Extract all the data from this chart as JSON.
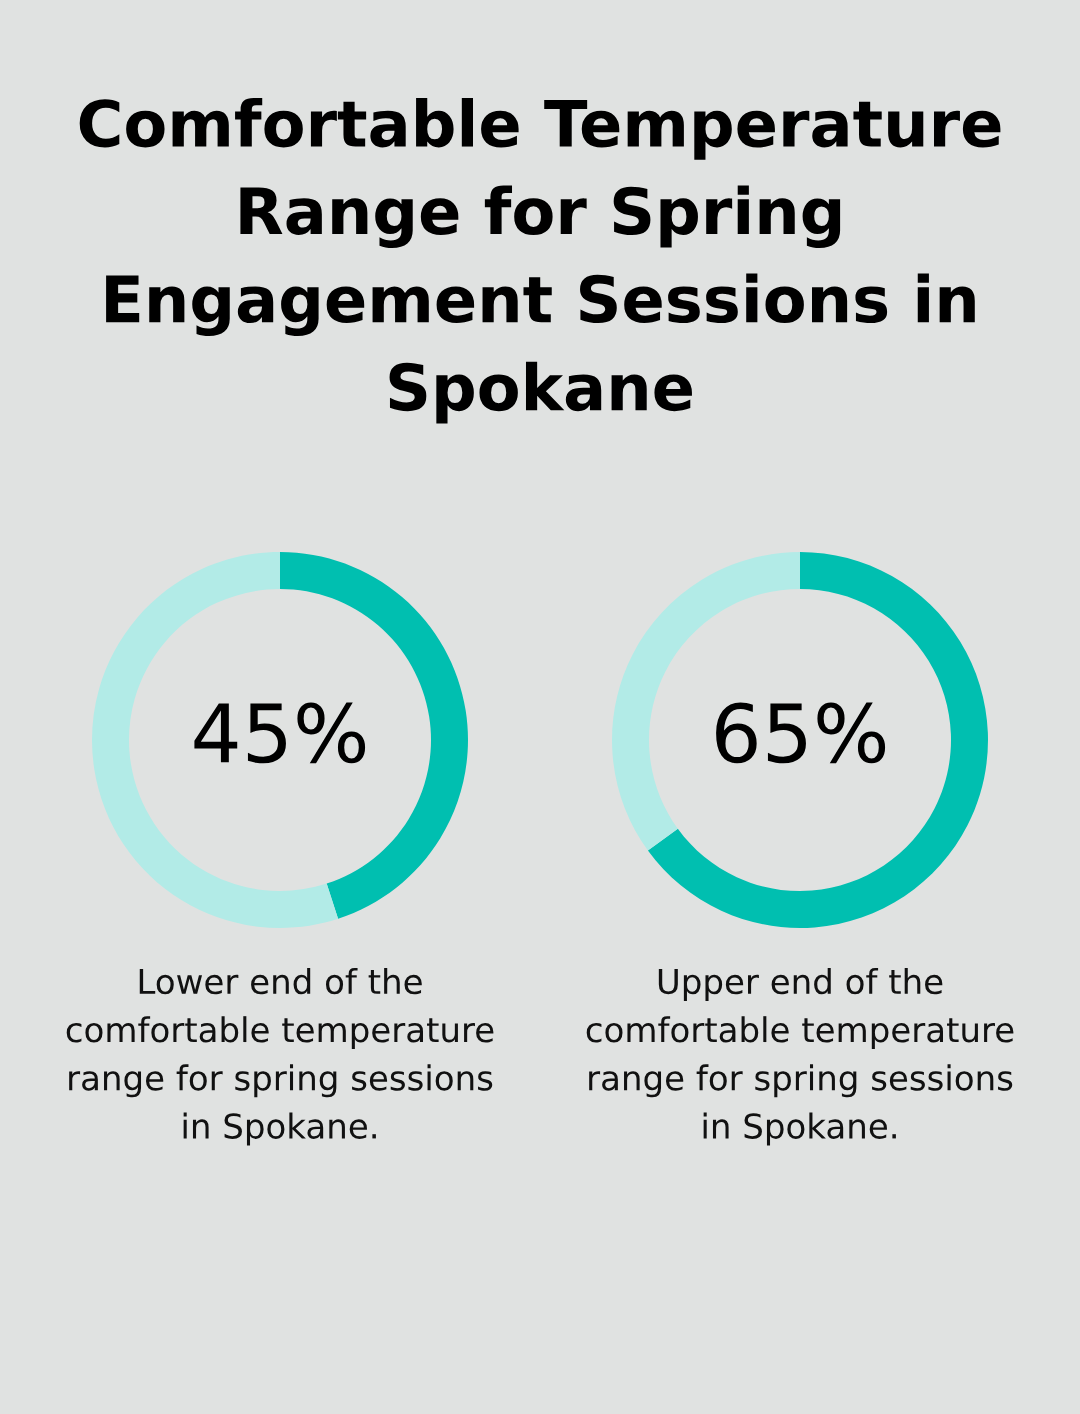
{
  "chart_data": [
    {
      "type": "donut",
      "title": "Comfortable Temperature Range for Spring Engagement Sessions in Spokane",
      "categories": [
        null,
        null
      ],
      "values": [
        45,
        55
      ],
      "colors": [
        "#00bfb0",
        "#b2ebe7"
      ],
      "value_labels": [
        "45%",
        null
      ],
      "annotations": [
        "Lower end of the comfortable temperature range for spring sessions in Spokane."
      ]
    },
    {
      "type": "donut",
      "categories": [
        null,
        null
      ],
      "values": [
        65,
        35
      ],
      "colors": [
        "#00bfb0",
        "#b2ebe7"
      ],
      "value_labels": [
        "65%",
        null
      ],
      "annotations": [
        "Upper end of the comfortable temperature range for spring sessions in Spokane."
      ]
    }
  ]
}
